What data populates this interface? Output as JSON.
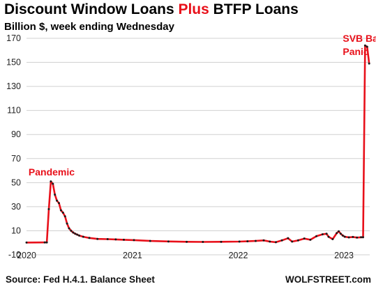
{
  "title": {
    "part1": "Discount Window Loans ",
    "part2": "Plus",
    "part3": " BTFP Loans",
    "accent_color": "#e8101a"
  },
  "subtitle": "Billion $, week ending Wednesday",
  "source": "Source: Fed H.4.1. Balance Sheet",
  "brand": "WOLFSTREET.com",
  "chart_data": {
    "type": "line",
    "ylim": [
      -10,
      170
    ],
    "yticks": [
      -10,
      10,
      30,
      50,
      70,
      90,
      110,
      130,
      150,
      170
    ],
    "ytick_labels": [
      "-10",
      "10",
      "30",
      "50",
      "70",
      "90",
      "110",
      "130",
      "150",
      "170"
    ],
    "xlim": [
      "2020-01-01",
      "2023-03-31"
    ],
    "xticks": [
      {
        "date": "2020-01-01",
        "label": "2020"
      },
      {
        "date": "2021-01-01",
        "label": "2021"
      },
      {
        "date": "2022-01-01",
        "label": "2022"
      },
      {
        "date": "2023-01-01",
        "label": "2023"
      }
    ],
    "line_color": "#e8101a",
    "marker_color": "#1a1a1a",
    "grid": "horizontal",
    "annotations": [
      {
        "text": "Pandemic",
        "x": "2020-01-08",
        "y": 56
      },
      {
        "text": "SVB Bank",
        "x": "2022-12-28",
        "y": 167
      },
      {
        "text": "Panic",
        "x": "2022-12-28",
        "y": 156
      }
    ],
    "series": [
      {
        "points": [
          [
            "2020-01-01",
            0.2
          ],
          [
            "2020-03-04",
            0.3
          ],
          [
            "2020-03-11",
            0.3
          ],
          [
            "2020-03-18",
            28
          ],
          [
            "2020-03-25",
            51
          ],
          [
            "2020-04-01",
            49
          ],
          [
            "2020-04-08",
            40
          ],
          [
            "2020-04-15",
            35
          ],
          [
            "2020-04-22",
            33
          ],
          [
            "2020-04-29",
            27
          ],
          [
            "2020-05-06",
            25
          ],
          [
            "2020-05-13",
            22
          ],
          [
            "2020-05-20",
            16
          ],
          [
            "2020-05-27",
            12
          ],
          [
            "2020-06-03",
            10
          ],
          [
            "2020-06-10",
            8.5
          ],
          [
            "2020-06-17",
            7.5
          ],
          [
            "2020-06-24",
            6.8
          ],
          [
            "2020-07-01",
            6.0
          ],
          [
            "2020-07-15",
            5.0
          ],
          [
            "2020-08-05",
            4.0
          ],
          [
            "2020-09-02",
            3.2
          ],
          [
            "2020-10-07",
            3.0
          ],
          [
            "2020-11-04",
            2.8
          ],
          [
            "2020-12-02",
            2.5
          ],
          [
            "2021-01-06",
            2.2
          ],
          [
            "2021-03-03",
            1.5
          ],
          [
            "2021-05-05",
            1.1
          ],
          [
            "2021-07-07",
            0.8
          ],
          [
            "2021-09-01",
            0.7
          ],
          [
            "2021-11-03",
            0.8
          ],
          [
            "2022-01-05",
            1.0
          ],
          [
            "2022-02-02",
            1.2
          ],
          [
            "2022-03-02",
            1.5
          ],
          [
            "2022-03-30",
            2.0
          ],
          [
            "2022-04-20",
            1.0
          ],
          [
            "2022-05-11",
            0.5
          ],
          [
            "2022-06-01",
            2.0
          ],
          [
            "2022-06-22",
            3.8
          ],
          [
            "2022-07-06",
            1.0
          ],
          [
            "2022-07-27",
            2.0
          ],
          [
            "2022-08-17",
            3.5
          ],
          [
            "2022-09-07",
            2.5
          ],
          [
            "2022-09-28",
            5.5
          ],
          [
            "2022-10-19",
            7.0
          ],
          [
            "2022-11-02",
            7.5
          ],
          [
            "2022-11-09",
            5.0
          ],
          [
            "2022-11-23",
            3.0
          ],
          [
            "2022-12-07",
            8.0
          ],
          [
            "2022-12-14",
            9.5
          ],
          [
            "2022-12-21",
            7.5
          ],
          [
            "2022-12-28",
            6.0
          ],
          [
            "2023-01-04",
            5.0
          ],
          [
            "2023-01-18",
            4.5
          ],
          [
            "2023-02-01",
            4.8
          ],
          [
            "2023-02-15",
            4.3
          ],
          [
            "2023-03-01",
            4.6
          ],
          [
            "2023-03-08",
            4.6
          ],
          [
            "2023-03-15",
            164
          ],
          [
            "2023-03-22",
            163
          ],
          [
            "2023-03-29",
            149
          ]
        ]
      }
    ]
  }
}
